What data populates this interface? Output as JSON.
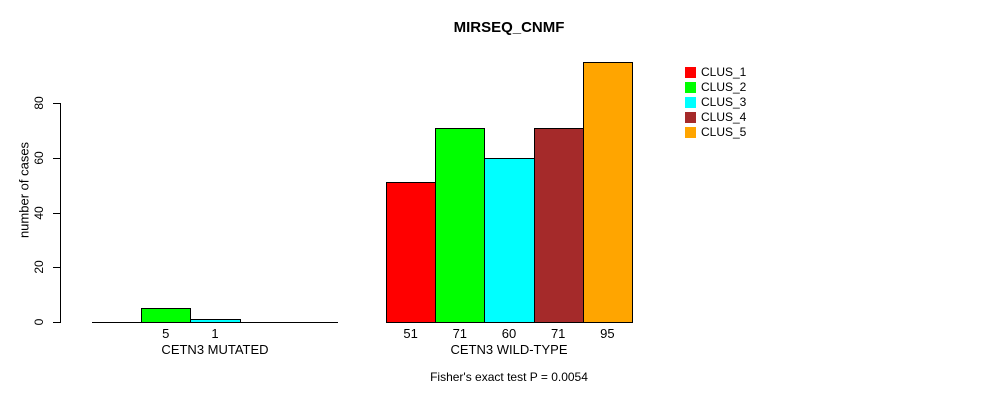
{
  "chart_data": {
    "type": "bar",
    "title": "MIRSEQ_CNMF",
    "ylabel": "number of cases",
    "xlabel": "",
    "ylim": [
      0,
      96
    ],
    "yticks": [
      0,
      20,
      40,
      60,
      80
    ],
    "grid": false,
    "categories": [
      "CETN3 MUTATED",
      "CETN3 WILD-TYPE"
    ],
    "series": [
      {
        "name": "CLUS_1",
        "color": "#ff0000",
        "values": [
          0,
          51
        ]
      },
      {
        "name": "CLUS_2",
        "color": "#00ff00",
        "values": [
          5,
          71
        ]
      },
      {
        "name": "CLUS_3",
        "color": "#00ffff",
        "values": [
          1,
          60
        ]
      },
      {
        "name": "CLUS_4",
        "color": "#a52a2a",
        "values": [
          0,
          71
        ]
      },
      {
        "name": "CLUS_5",
        "color": "#ffa500",
        "values": [
          0,
          95
        ]
      }
    ],
    "bar_value_labels": [
      [
        "",
        "5",
        "1",
        "",
        ""
      ],
      [
        "51",
        "71",
        "60",
        "71",
        "95"
      ]
    ],
    "legend_position": "topright",
    "annotation": "Fisher's exact test P = 0.0054"
  }
}
